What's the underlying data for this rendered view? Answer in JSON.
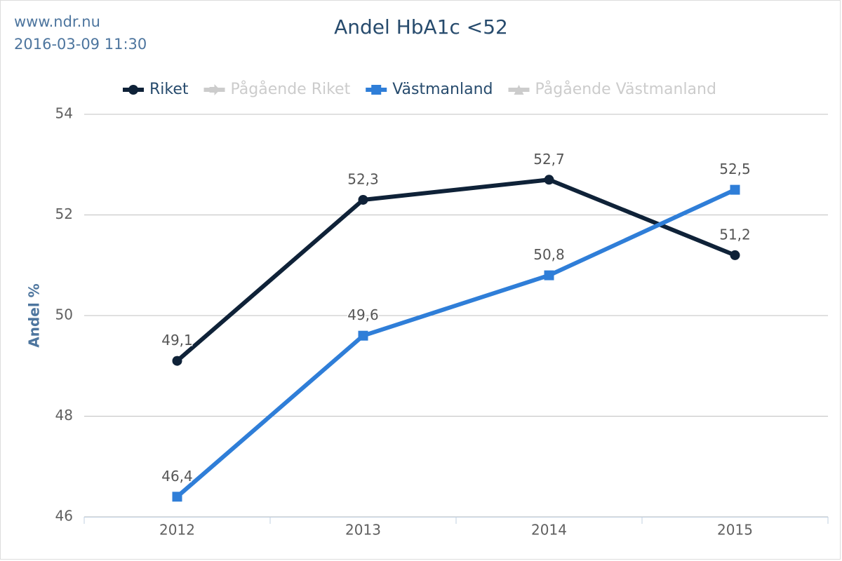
{
  "chart_data": {
    "type": "line",
    "title": "Andel HbA1c <52",
    "credits": [
      "www.ndr.nu",
      "2016-03-09 11:30"
    ],
    "y_label": "Andel %",
    "categories": [
      "2012",
      "2013",
      "2014",
      "2015"
    ],
    "ylim": [
      46,
      54
    ],
    "yticks": [
      46,
      48,
      50,
      52,
      54
    ],
    "grid": true,
    "legend": "top",
    "series": [
      {
        "name": "Riket",
        "color": "#0f2238",
        "marker": "circle",
        "visible": true,
        "values": [
          49.1,
          52.3,
          52.7,
          51.2
        ],
        "value_labels": [
          "49,1",
          "52,3",
          "52,7",
          "51,2"
        ]
      },
      {
        "name": "Pågående Riket",
        "color": "#cccccc",
        "marker": "arrow",
        "visible": false,
        "values": [
          null,
          null,
          null,
          null
        ]
      },
      {
        "name": "Västmanland",
        "color": "#2f7ed8",
        "marker": "square",
        "visible": true,
        "values": [
          46.4,
          49.6,
          50.8,
          52.5
        ],
        "value_labels": [
          "46,4",
          "49,6",
          "50,8",
          "52,5"
        ]
      },
      {
        "name": "Pågående Västmanland",
        "color": "#cccccc",
        "marker": "triangle",
        "visible": false,
        "values": [
          null,
          null,
          null,
          null
        ]
      }
    ]
  }
}
